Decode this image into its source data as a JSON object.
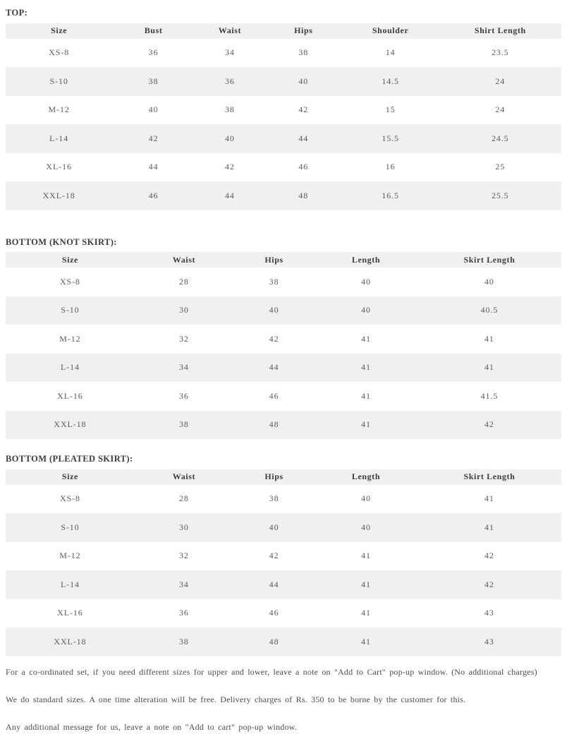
{
  "colors": {
    "background": "#ffffff",
    "row_stripe": "#f1f0ef",
    "heading_text": "#3c3c3c",
    "cell_text": "#5a5a5a",
    "note_text": "#4c4c4c"
  },
  "tables": [
    {
      "title": "TOP:",
      "columns": [
        "Size",
        "Bust",
        "Waist",
        "Hips",
        "Shoulder",
        "Shirt Length"
      ],
      "rows": [
        [
          "XS-8",
          "36",
          "34",
          "38",
          "14",
          "23.5"
        ],
        [
          "S-10",
          "38",
          "36",
          "40",
          "14.5",
          "24"
        ],
        [
          "M-12",
          "40",
          "38",
          "42",
          "15",
          "24"
        ],
        [
          "L-14",
          "42",
          "40",
          "44",
          "15.5",
          "24.5"
        ],
        [
          "XL-16",
          "44",
          "42",
          "46",
          "16",
          "25"
        ],
        [
          "XXL-18",
          "46",
          "44",
          "48",
          "16.5",
          "25.5"
        ]
      ]
    },
    {
      "title": "BOTTOM (KNOT SKIRT):",
      "columns": [
        "Size",
        "Waist",
        "Hips",
        "Length",
        "Skirt Length"
      ],
      "rows": [
        [
          "XS-8",
          "28",
          "38",
          "40",
          "40"
        ],
        [
          "S-10",
          "30",
          "40",
          "40",
          "40.5"
        ],
        [
          "M-12",
          "32",
          "42",
          "41",
          "41"
        ],
        [
          "L-14",
          "34",
          "44",
          "41",
          "41"
        ],
        [
          "XL-16",
          "36",
          "46",
          "41",
          "41.5"
        ],
        [
          "XXL-18",
          "38",
          "48",
          "41",
          "42"
        ]
      ]
    },
    {
      "title": "BOTTOM (PLEATED SKIRT):",
      "columns": [
        "Size",
        "Waist",
        "Hips",
        "Length",
        "Skirt Length"
      ],
      "rows": [
        [
          "XS-8",
          "28",
          "38",
          "40",
          "41"
        ],
        [
          "S-10",
          "30",
          "40",
          "40",
          "41"
        ],
        [
          "M-12",
          "32",
          "42",
          "41",
          "42"
        ],
        [
          "L-14",
          "34",
          "44",
          "41",
          "42"
        ],
        [
          "XL-16",
          "36",
          "46",
          "41",
          "43"
        ],
        [
          "XXL-18",
          "38",
          "48",
          "41",
          "43"
        ]
      ]
    }
  ],
  "notes": [
    "For a co-ordinated set, if you need different sizes for upper and lower, leave a note on \"Add to Cart\" pop-up window. (No additional charges)",
    "We do standard sizes. A one time alteration will be free. Delivery charges of Rs. 350 to be borne by the customer for this.",
    "Any additional message for us, leave a note on \"Add to cart\" pop-up window."
  ]
}
